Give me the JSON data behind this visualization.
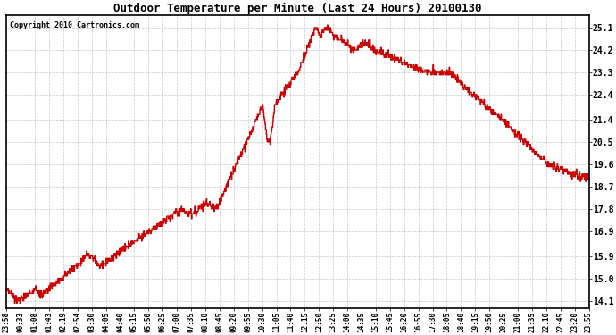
{
  "title": "Outdoor Temperature per Minute (Last 24 Hours) 20100130",
  "copyright_text": "Copyright 2010 Cartronics.com",
  "line_color": "#cc0000",
  "background_color": "#ffffff",
  "plot_bg_color": "#ffffff",
  "grid_color": "#bbbbbb",
  "yticks": [
    14.1,
    15.0,
    15.9,
    16.9,
    17.8,
    18.7,
    19.6,
    20.5,
    21.4,
    22.4,
    23.3,
    24.2,
    25.1
  ],
  "ylim": [
    13.8,
    25.6
  ],
  "x_labels": [
    "23:58",
    "00:33",
    "01:08",
    "01:43",
    "02:19",
    "02:54",
    "03:30",
    "04:05",
    "04:40",
    "05:15",
    "05:50",
    "06:25",
    "07:00",
    "07:35",
    "08:10",
    "08:45",
    "09:20",
    "09:55",
    "10:30",
    "11:05",
    "11:40",
    "12:15",
    "12:50",
    "13:25",
    "14:00",
    "14:35",
    "15:10",
    "15:45",
    "16:20",
    "16:55",
    "17:30",
    "18:05",
    "18:40",
    "19:15",
    "19:50",
    "20:25",
    "21:00",
    "21:35",
    "22:10",
    "22:45",
    "23:20",
    "23:55"
  ],
  "num_points": 1440
}
